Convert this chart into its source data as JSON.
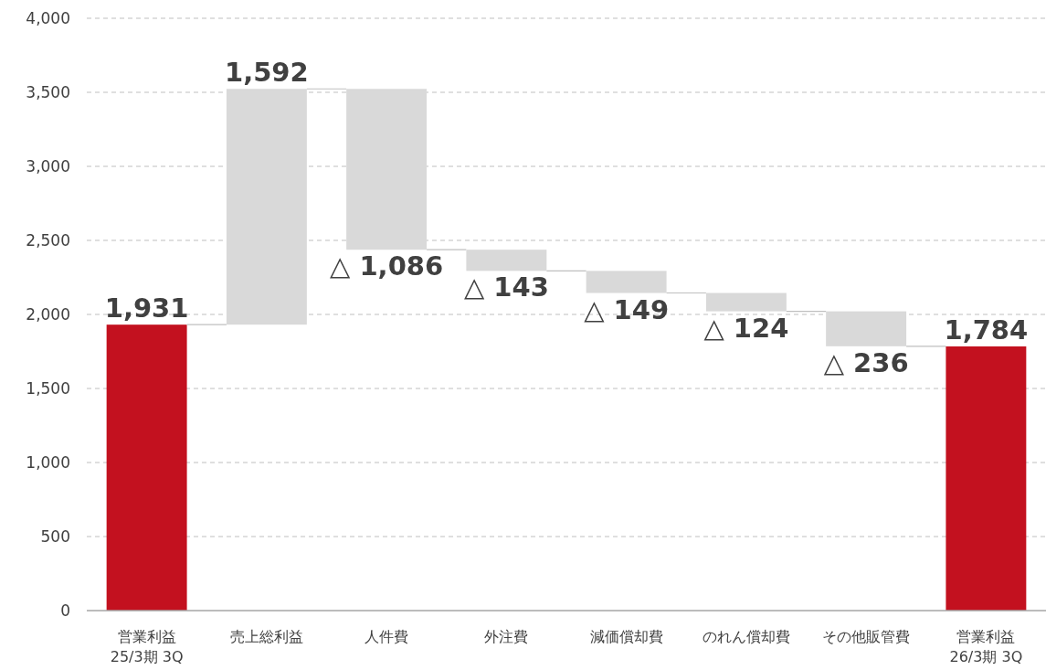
{
  "chart_data": {
    "type": "bar",
    "categories": [
      "営業利益\n25/3期 3Q",
      "売上総利益",
      "人件費",
      "外注費",
      "減価償却費",
      "のれん償却費",
      "その他販管費",
      "営業利益\n26/3期 3Q"
    ],
    "values": [
      1931,
      1592,
      -1086,
      -143,
      -149,
      -124,
      -236,
      1784
    ],
    "base": [
      0,
      1931,
      3523,
      2437,
      2294,
      2145,
      2021,
      0
    ],
    "colors": [
      "#c3111f",
      "#d9d9d9",
      "#d9d9d9",
      "#d9d9d9",
      "#d9d9d9",
      "#d9d9d9",
      "#d9d9d9",
      "#c3111f"
    ],
    "value_labels": [
      "1,931",
      "1,592",
      "△ 1,086",
      "△ 143",
      "△ 149",
      "△ 124",
      "△ 236",
      "1,784"
    ],
    "ylim": [
      0,
      4000
    ],
    "yticks": [
      {
        "value": 0,
        "label": "0"
      },
      {
        "value": 500,
        "label": "500"
      },
      {
        "value": 1000,
        "label": "1,000"
      },
      {
        "value": 1500,
        "label": "1,500"
      },
      {
        "value": 2000,
        "label": "2,000"
      },
      {
        "value": 2500,
        "label": "2,500"
      },
      {
        "value": 3000,
        "label": "3,000"
      },
      {
        "value": 3500,
        "label": "3,500"
      },
      {
        "value": 4000,
        "label": "4,000"
      }
    ],
    "grid": "y"
  }
}
